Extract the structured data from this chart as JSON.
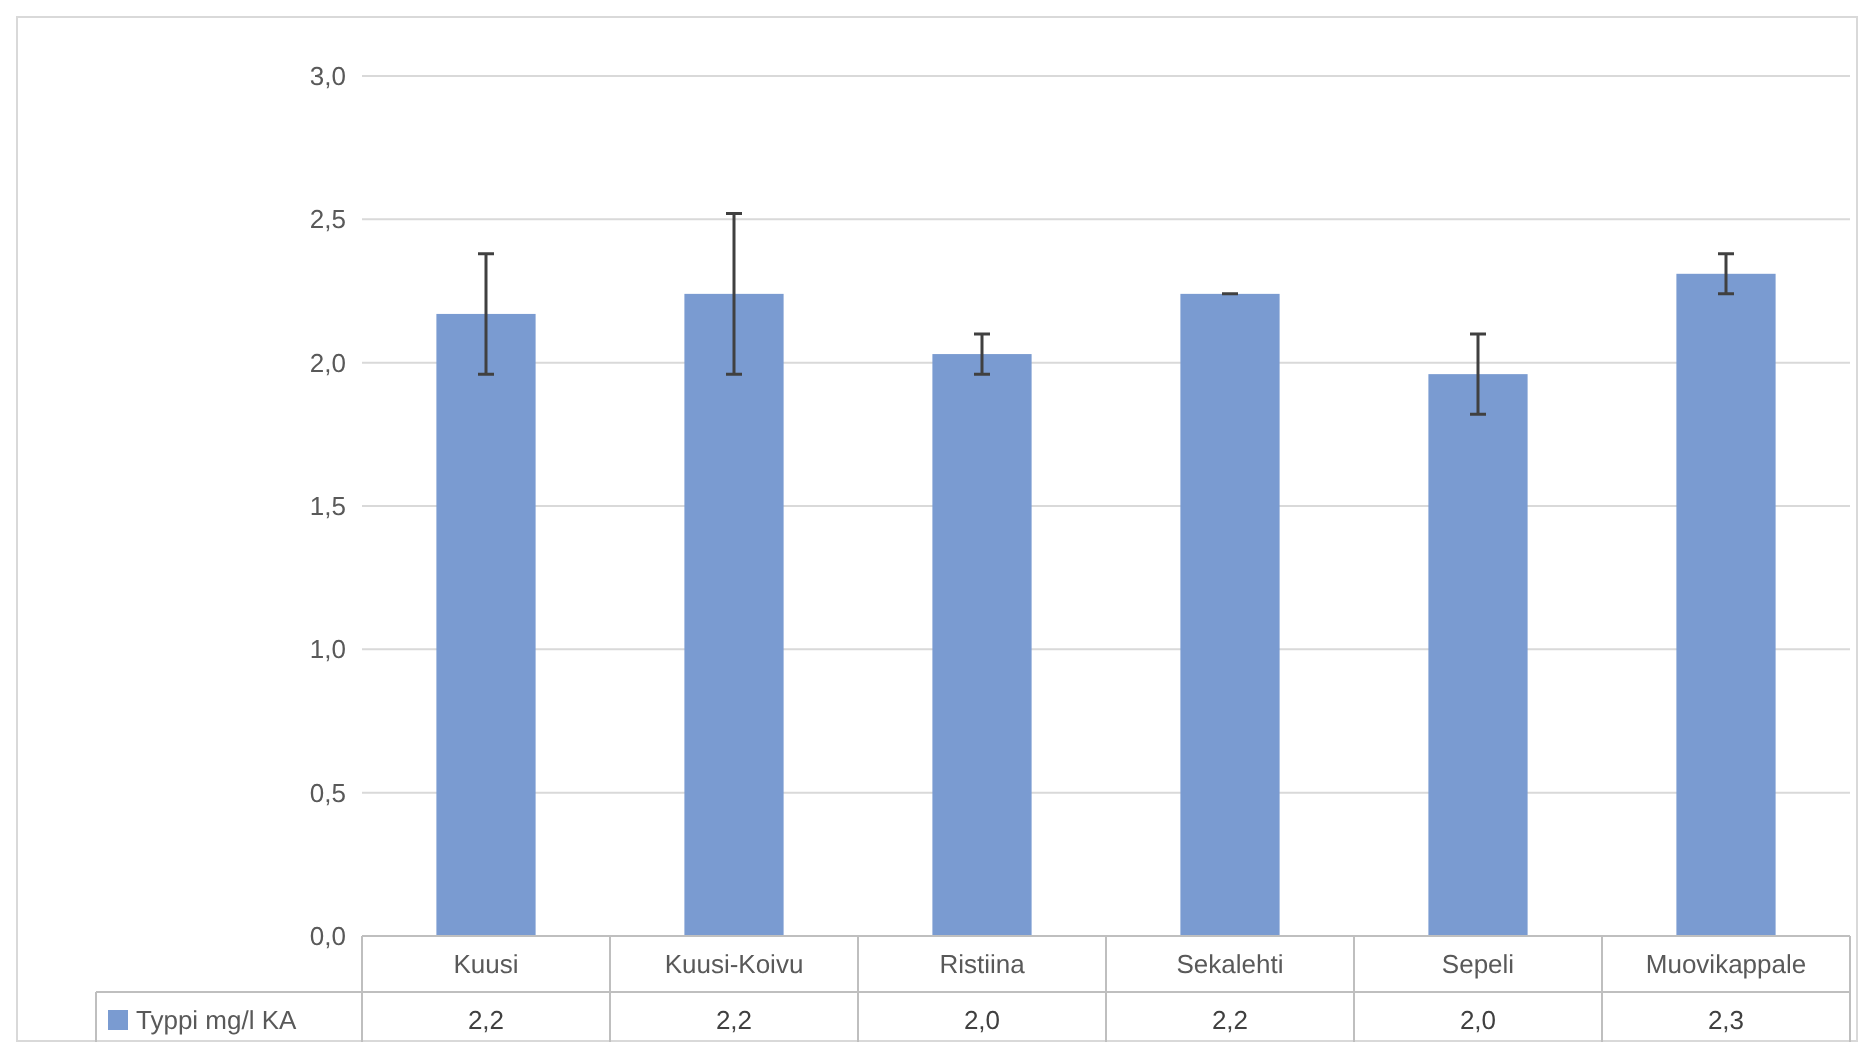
{
  "chart_data": {
    "type": "bar",
    "categories": [
      "Kuusi",
      "Kuusi-Koivu",
      "Ristiina",
      "Sekalehti",
      "Sepeli",
      "Muovikappale"
    ],
    "series": [
      {
        "name": "Typpi mg/l KA",
        "color": "#7a9bd1",
        "values": [
          2.17,
          2.24,
          2.03,
          2.24,
          1.96,
          2.31
        ],
        "errors": [
          [
            1.96,
            2.38
          ],
          [
            1.96,
            2.52
          ],
          [
            1.96,
            2.1
          ],
          [
            2.24,
            2.24
          ],
          [
            1.82,
            2.1
          ],
          [
            2.24,
            2.38
          ]
        ],
        "value_labels": [
          "2,2",
          "2,2",
          "2,0",
          "2,2",
          "2,0",
          "2,3"
        ]
      }
    ],
    "ylim": [
      0,
      3
    ],
    "yticks": [
      {
        "value": 0,
        "label": "0,0"
      },
      {
        "value": 0.5,
        "label": "0,5"
      },
      {
        "value": 1,
        "label": "1,0"
      },
      {
        "value": 1.5,
        "label": "1,5"
      },
      {
        "value": 2,
        "label": "2,0"
      },
      {
        "value": 2.5,
        "label": "2,5"
      },
      {
        "value": 3,
        "label": "3,0"
      }
    ],
    "grid": "y",
    "legend": "bottom"
  }
}
